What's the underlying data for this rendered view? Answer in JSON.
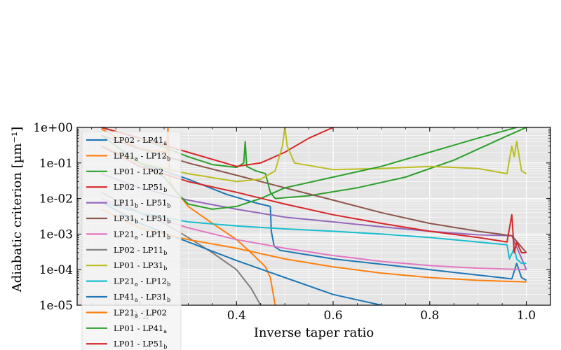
{
  "chart_data": {
    "type": "line",
    "xlabel": "Inverse taper ratio",
    "ylabel": "Adiabatic criterion [µm⁻¹]",
    "xlim": [
      0.07,
      1.05
    ],
    "ylim": [
      1e-05,
      1
    ],
    "yscale": "log",
    "grid": true,
    "legend_position": "left",
    "x_ticks": [
      0.2,
      0.4,
      0.6,
      0.8,
      1.0
    ],
    "x_tick_labels": [
      "0.2",
      "0.4",
      "0.6",
      "0.8",
      "1.0"
    ],
    "y_ticks": [
      1e-05,
      0.0001,
      0.001,
      0.01,
      0.1,
      1
    ],
    "y_tick_labels": [
      "1e-05",
      "1e-04",
      "1e-03",
      "1e-02",
      "1e-01",
      "1e+00"
    ],
    "series": [
      {
        "name": "LP02 - LP41a",
        "label": {
          "main": "LP02 - LP41",
          "sub": "a",
          "tail": ""
        },
        "color": "#1f77b4",
        "points": [
          [
            0.12,
            0.3
          ],
          [
            0.2,
            0.1
          ],
          [
            0.3,
            0.035
          ],
          [
            0.38,
            0.013
          ],
          [
            0.44,
            0.0075
          ],
          [
            0.47,
            0.006
          ],
          [
            0.472,
            0.0012
          ],
          [
            0.478,
            0.00045
          ],
          [
            0.49,
            0.00035
          ],
          [
            0.6,
            0.0002
          ],
          [
            0.8,
            0.0001
          ],
          [
            0.97,
            5.5e-05
          ],
          [
            0.98,
            0.00015
          ],
          [
            0.99,
            6e-05
          ],
          [
            1.0,
            5e-05
          ]
        ]
      },
      {
        "name": "LP41a - LP12b",
        "label": {
          "main": "LP41",
          "sub": "a",
          "tail": " - LP12",
          "sub2": "b"
        },
        "color": "#ff7f0e",
        "points": [
          [
            0.12,
            0.9
          ],
          [
            0.2,
            0.25
          ],
          [
            0.255,
            0.2
          ],
          [
            0.258,
            1
          ],
          [
            0.262,
            0.03
          ],
          [
            0.27,
            0.02
          ],
          [
            0.3,
            0.006
          ],
          [
            0.35,
            0.002
          ],
          [
            0.4,
            0.0007
          ],
          [
            0.43,
            0.0003
          ],
          [
            0.46,
            0.00012
          ],
          [
            0.47,
            6e-05
          ],
          [
            0.48,
            1e-05
          ]
        ]
      },
      {
        "name": "LP01 - LP02",
        "label": {
          "main": "LP01 - LP02",
          "sub": "",
          "tail": ""
        },
        "color": "#2ca02c",
        "points": [
          [
            0.12,
            1
          ],
          [
            0.2,
            0.5
          ],
          [
            0.3,
            0.15
          ],
          [
            0.35,
            0.09
          ],
          [
            0.4,
            0.075
          ],
          [
            0.415,
            0.1
          ],
          [
            0.418,
            0.4
          ],
          [
            0.421,
            0.08
          ],
          [
            0.44,
            0.06
          ],
          [
            0.46,
            0.05
          ],
          [
            0.47,
            0.015
          ],
          [
            0.48,
            0.01
          ],
          [
            0.55,
            0.012
          ],
          [
            0.65,
            0.02
          ],
          [
            0.75,
            0.04
          ],
          [
            0.85,
            0.12
          ],
          [
            0.95,
            0.5
          ],
          [
            1.0,
            1
          ]
        ]
      },
      {
        "name": "LP02 - LP51b",
        "label": {
          "main": "LP02 - LP51",
          "sub": "b",
          "tail": ""
        },
        "color": "#d62728",
        "points": [
          [
            0.12,
            1
          ],
          [
            0.2,
            0.5
          ],
          [
            0.3,
            0.2
          ],
          [
            0.4,
            0.08
          ],
          [
            0.45,
            0.1
          ],
          [
            0.5,
            0.2
          ],
          [
            0.55,
            0.5
          ],
          [
            0.6,
            1
          ]
        ]
      },
      {
        "name": "LP11b - LP51b",
        "label": {
          "main": "LP11",
          "sub": "b",
          "tail": " - LP51",
          "sub2": "b"
        },
        "color": "#9467bd",
        "points": [
          [
            0.12,
            0.05
          ],
          [
            0.2,
            0.02
          ],
          [
            0.3,
            0.009
          ],
          [
            0.4,
            0.005
          ],
          [
            0.5,
            0.003
          ],
          [
            0.6,
            0.0022
          ],
          [
            0.7,
            0.0016
          ],
          [
            0.8,
            0.0012
          ],
          [
            0.9,
            0.00095
          ],
          [
            0.97,
            0.0009
          ],
          [
            1.0,
            0.0001
          ]
        ]
      },
      {
        "name": "LP31b - LP51b",
        "label": {
          "main": "LP31",
          "sub": "b",
          "tail": " - LP51",
          "sub2": "b"
        },
        "color": "#8c564b",
        "points": [
          [
            0.12,
            0.6
          ],
          [
            0.2,
            0.25
          ],
          [
            0.3,
            0.1
          ],
          [
            0.4,
            0.045
          ],
          [
            0.5,
            0.02
          ],
          [
            0.6,
            0.009
          ],
          [
            0.7,
            0.004
          ],
          [
            0.8,
            0.002
          ],
          [
            0.9,
            0.0012
          ],
          [
            0.97,
            0.0009
          ],
          [
            1.0,
            0.0003
          ]
        ]
      },
      {
        "name": "LP21a - LP11b",
        "label": {
          "main": "LP21",
          "sub": "a",
          "tail": " - LP11",
          "sub2": "b"
        },
        "color": "#e377c2",
        "points": [
          [
            0.12,
            0.01
          ],
          [
            0.2,
            0.004
          ],
          [
            0.3,
            0.0015
          ],
          [
            0.4,
            0.0007
          ],
          [
            0.5,
            0.0004
          ],
          [
            0.6,
            0.00025
          ],
          [
            0.7,
            0.00017
          ],
          [
            0.8,
            0.00013
          ],
          [
            0.9,
            0.00011
          ],
          [
            1.0,
            0.0001
          ]
        ]
      },
      {
        "name": "LP02 - LP11b",
        "label": {
          "main": "LP02 - LP11",
          "sub": "b",
          "tail": ""
        },
        "color": "#7f7f7f",
        "points": [
          [
            0.12,
            0.015
          ],
          [
            0.2,
            0.004
          ],
          [
            0.25,
            0.002
          ],
          [
            0.3,
            0.0008
          ],
          [
            0.35,
            0.0003
          ],
          [
            0.4,
            0.0001
          ],
          [
            0.43,
            3e-05
          ],
          [
            0.45,
            1e-05
          ]
        ]
      },
      {
        "name": "LP01 - LP31b",
        "label": {
          "main": "LP01 - LP31",
          "sub": "b",
          "tail": ""
        },
        "color": "#bcbd22",
        "points": [
          [
            0.12,
            0.3
          ],
          [
            0.2,
            0.1
          ],
          [
            0.3,
            0.05
          ],
          [
            0.4,
            0.03
          ],
          [
            0.45,
            0.035
          ],
          [
            0.48,
            0.06
          ],
          [
            0.495,
            0.3
          ],
          [
            0.5,
            1
          ],
          [
            0.505,
            0.3
          ],
          [
            0.52,
            0.1
          ],
          [
            0.6,
            0.065
          ],
          [
            0.7,
            0.07
          ],
          [
            0.8,
            0.08
          ],
          [
            0.9,
            0.07
          ],
          [
            0.96,
            0.05
          ],
          [
            0.97,
            0.3
          ],
          [
            0.975,
            0.15
          ],
          [
            0.98,
            0.4
          ],
          [
            0.99,
            0.06
          ],
          [
            1.0,
            0.05
          ]
        ]
      },
      {
        "name": "LP21a - LP12b",
        "label": {
          "main": "LP21",
          "sub": "a",
          "tail": " - LP12",
          "sub2": "b"
        },
        "color": "#17becf",
        "points": [
          [
            0.12,
            0.008
          ],
          [
            0.2,
            0.004
          ],
          [
            0.3,
            0.0022
          ],
          [
            0.4,
            0.0017
          ],
          [
            0.5,
            0.0014
          ],
          [
            0.6,
            0.0012
          ],
          [
            0.7,
            0.001
          ],
          [
            0.8,
            0.0008
          ],
          [
            0.9,
            0.0006
          ],
          [
            0.96,
            0.0005
          ],
          [
            0.965,
            0.0002
          ],
          [
            0.975,
            0.0004
          ],
          [
            0.98,
            0.0002
          ],
          [
            0.99,
            0.00015
          ],
          [
            1.0,
            0.00015
          ]
        ]
      },
      {
        "name": "LP41a - LP31b",
        "label": {
          "main": "LP41",
          "sub": "a",
          "tail": " - LP31",
          "sub2": "b"
        },
        "color": "#1f77b4",
        "points": [
          [
            0.12,
            0.008
          ],
          [
            0.2,
            0.002
          ],
          [
            0.3,
            0.0006
          ],
          [
            0.4,
            0.00018
          ],
          [
            0.5,
            6e-05
          ],
          [
            0.6,
            2e-05
          ],
          [
            0.7,
            1e-05
          ]
        ]
      },
      {
        "name": "LP21a - LP02",
        "label": {
          "main": "LP21",
          "sub": "a",
          "tail": " - LP02"
        },
        "color": "#ff7f0e",
        "points": [
          [
            0.12,
            0.005
          ],
          [
            0.2,
            0.0015
          ],
          [
            0.3,
            0.0007
          ],
          [
            0.4,
            0.0004
          ],
          [
            0.5,
            0.0002
          ],
          [
            0.6,
            0.00012
          ],
          [
            0.7,
            8e-05
          ],
          [
            0.8,
            6e-05
          ],
          [
            0.9,
            5e-05
          ],
          [
            1.0,
            4.5e-05
          ]
        ]
      },
      {
        "name": "LP01 - LP41a",
        "label": {
          "main": "LP01 - LP41",
          "sub": "a",
          "tail": ""
        },
        "color": "#2ca02c",
        "points": [
          [
            0.12,
            0.6
          ],
          [
            0.2,
            0.1
          ],
          [
            0.25,
            0.04
          ],
          [
            0.28,
            0.013
          ],
          [
            0.3,
            0.007
          ],
          [
            0.35,
            0.005
          ],
          [
            0.4,
            0.006
          ],
          [
            0.45,
            0.01
          ],
          [
            0.5,
            0.02
          ],
          [
            0.6,
            0.04
          ],
          [
            0.7,
            0.08
          ],
          [
            0.8,
            0.2
          ],
          [
            0.9,
            0.5
          ],
          [
            0.98,
            1
          ]
        ]
      },
      {
        "name": "LP01 - LP51b",
        "label": {
          "main": "LP01 - LP51",
          "sub": "b",
          "tail": ""
        },
        "color": "#d62728",
        "points": [
          [
            0.12,
            0.3
          ],
          [
            0.2,
            0.08
          ],
          [
            0.3,
            0.03
          ],
          [
            0.4,
            0.015
          ],
          [
            0.5,
            0.007
          ],
          [
            0.6,
            0.0035
          ],
          [
            0.7,
            0.002
          ],
          [
            0.8,
            0.0012
          ],
          [
            0.9,
            0.0008
          ],
          [
            0.96,
            0.0006
          ],
          [
            0.97,
            0.0035
          ],
          [
            0.975,
            0.0003
          ],
          [
            0.98,
            0.0006
          ],
          [
            0.99,
            0.0003
          ],
          [
            1.0,
            0.0003
          ]
        ]
      }
    ]
  }
}
